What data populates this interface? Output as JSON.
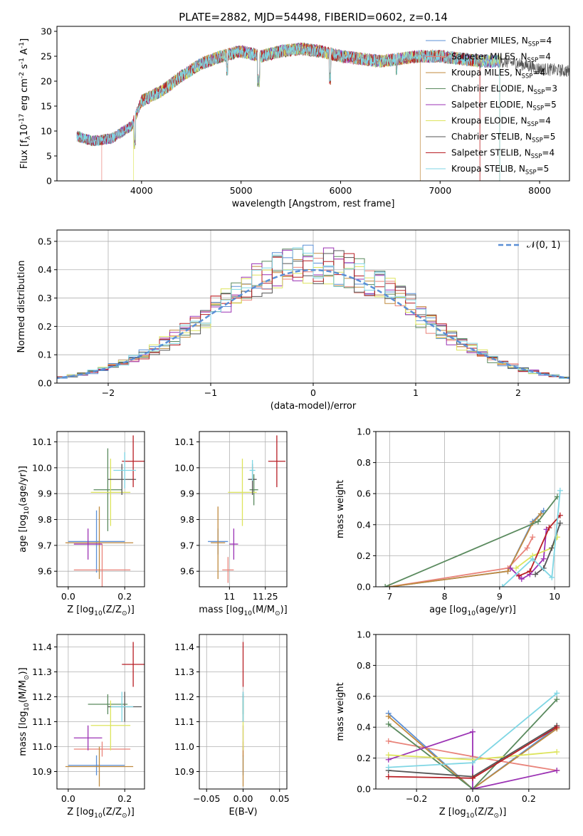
{
  "figure": {
    "title": "PLATE=2882, MJD=54498, FIBERID=0602, z=0.14"
  },
  "models": [
    {
      "label": "Chabrier MILES, N$_{SSP}$=4",
      "color": "#5b8fd6"
    },
    {
      "label": "Salpeter MILES, N$_{SSP}$=4",
      "color": "#e9837a"
    },
    {
      "label": "Kroupa MILES, N$_{SSP}$=4",
      "color": "#c08a3e"
    },
    {
      "label": "Chabrier ELODIE, N$_{SSP}$=3",
      "color": "#5a8a5e"
    },
    {
      "label": "Salpeter ELODIE, N$_{SSP}$=5",
      "color": "#9b32b4"
    },
    {
      "label": "Kroupa ELODIE, N$_{SSP}$=4",
      "color": "#dde45c"
    },
    {
      "label": "Chabrier STELIB, N$_{SSP}$=5",
      "color": "#555555"
    },
    {
      "label": "Salpeter STELIB, N$_{SSP}$=4",
      "color": "#b81e24"
    },
    {
      "label": "Kroupa STELIB, N$_{SSP}$=5",
      "color": "#7fd6e4"
    }
  ],
  "chart_data": [
    {
      "id": "spectrum",
      "type": "line",
      "xlabel": "wavelength [Angstrom, rest frame]",
      "ylabel": "Flux [f$_\\lambda$10$^{-17}$ erg cm$^{-2}$ s$^{-1}$ A$^{-1}$]",
      "xlim": [
        3150,
        8300
      ],
      "ylim": [
        0,
        31
      ],
      "xticks": [
        4000,
        5000,
        6000,
        7000,
        8000
      ],
      "yticks": [
        0,
        5,
        10,
        15,
        20,
        25,
        30
      ],
      "legend": "top-right",
      "continuum_x": [
        3350,
        3500,
        3700,
        3900,
        4000,
        4200,
        4400,
        4600,
        4800,
        5000,
        5200,
        5400,
        5600,
        5800,
        6000,
        6200,
        6400,
        6600,
        6800,
        7000,
        7200,
        7400,
        7600,
        7800,
        8000,
        8300
      ],
      "continuum_y": [
        9,
        8,
        8.5,
        11,
        16,
        18,
        21,
        23.5,
        25,
        26,
        25,
        26,
        26.5,
        26,
        25,
        24.5,
        24,
        24.5,
        25,
        25,
        24.5,
        24,
        24,
        23.5,
        22.5,
        22
      ],
      "observed_until": 7600,
      "model_starts": [
        3350,
        3600,
        3350,
        3350,
        3350,
        3920,
        3350,
        3350,
        3350
      ],
      "model_ends": [
        7600,
        7400,
        6800,
        7600,
        7600,
        7600,
        7600,
        7400,
        7600
      ]
    },
    {
      "id": "residuals",
      "type": "bar",
      "xlabel": "(data-model)/error",
      "ylabel": "Normed distribution",
      "xlim": [
        -2.5,
        2.5
      ],
      "ylim": [
        0,
        0.54
      ],
      "xticks": [
        -2,
        -1,
        0,
        1,
        2
      ],
      "yticks": [
        0.0,
        0.1,
        0.2,
        0.3,
        0.4,
        0.5
      ],
      "legend": "top-right",
      "reference_label": "$\\mathcal{N}(0, 1)$",
      "bin_width": 0.1
    },
    {
      "id": "age-vs-Z",
      "type": "scatter",
      "xlabel": "Z [log$_{10}$(Z/Z$_\\odot$)]",
      "ylabel": "age  [log$_{10}$(age/yr)]",
      "xlim": [
        -0.04,
        0.27
      ],
      "ylim": [
        9.54,
        10.14
      ],
      "xticks": [
        0.0,
        0.2
      ],
      "yticks": [
        9.6,
        9.7,
        9.8,
        9.9,
        10.0,
        10.1
      ],
      "points": [
        {
          "x": 0.1,
          "xerr": 0.1,
          "y": 9.715,
          "yerr": 0.12
        },
        {
          "x": 0.12,
          "xerr": 0.1,
          "y": 9.605,
          "yerr": 0.1
        },
        {
          "x": 0.11,
          "xerr": 0.12,
          "y": 9.71,
          "yerr": 0.14
        },
        {
          "x": 0.14,
          "xerr": 0.05,
          "y": 9.915,
          "yerr": 0.16
        },
        {
          "x": 0.07,
          "xerr": 0.05,
          "y": 9.705,
          "yerr": 0.06
        },
        {
          "x": 0.15,
          "xerr": 0.07,
          "y": 9.905,
          "yerr": 0.13
        },
        {
          "x": 0.19,
          "xerr": 0.05,
          "y": 9.955,
          "yerr": 0.06
        },
        {
          "x": 0.23,
          "xerr": 0.04,
          "y": 10.025,
          "yerr": 0.1
        },
        {
          "x": 0.2,
          "xerr": 0.04,
          "y": 9.99,
          "yerr": 0.07
        }
      ]
    },
    {
      "id": "age-vs-mass",
      "type": "scatter",
      "xlabel": "mass [log$_{10}$(M/M$_\\odot$)]",
      "ylabel": "",
      "xlim": [
        10.79,
        11.4
      ],
      "ylim": [
        9.54,
        10.14
      ],
      "xticks": [
        11.0,
        11.25
      ],
      "yticks": [
        9.6,
        9.7,
        9.8,
        9.9,
        10.0,
        10.1
      ],
      "points": [
        {
          "x": 10.92,
          "xerr": 0.07,
          "y": 9.715,
          "yerr": 0.05
        },
        {
          "x": 10.99,
          "xerr": 0.04,
          "y": 9.605,
          "yerr": 0.05
        },
        {
          "x": 10.92,
          "xerr": 0.05,
          "y": 9.71,
          "yerr": 0.14
        },
        {
          "x": 11.17,
          "xerr": 0.03,
          "y": 9.915,
          "yerr": 0.06
        },
        {
          "x": 11.03,
          "xerr": 0.03,
          "y": 9.705,
          "yerr": 0.06
        },
        {
          "x": 11.09,
          "xerr": 0.1,
          "y": 9.905,
          "yerr": 0.13
        },
        {
          "x": 11.16,
          "xerr": 0.03,
          "y": 9.955,
          "yerr": 0.06
        },
        {
          "x": 11.33,
          "xerr": 0.06,
          "y": 10.025,
          "yerr": 0.1
        },
        {
          "x": 11.16,
          "xerr": 0.02,
          "y": 9.99,
          "yerr": 0.04
        }
      ]
    },
    {
      "id": "weight-vs-age",
      "type": "line",
      "xlabel": "age  [log$_{10}$(age/yr)]",
      "ylabel": "mass weight",
      "xlim": [
        6.75,
        10.27
      ],
      "ylim": [
        0,
        1
      ],
      "xticks": [
        7,
        8,
        9,
        10
      ],
      "yticks": [
        0.0,
        0.2,
        0.4,
        0.6,
        0.8,
        1.0
      ],
      "series": [
        {
          "x": [
            7.0,
            9.15,
            9.6,
            9.8
          ],
          "y": [
            0.0,
            0.1,
            0.42,
            0.49
          ]
        },
        {
          "x": [
            7.0,
            9.15,
            9.5,
            9.6
          ],
          "y": [
            0.0,
            0.12,
            0.25,
            0.32
          ]
        },
        {
          "x": [
            7.0,
            9.15,
            9.6,
            9.75
          ],
          "y": [
            0.0,
            0.1,
            0.41,
            0.47
          ]
        },
        {
          "x": [
            6.92,
            9.7,
            10.05
          ],
          "y": [
            0.0,
            0.42,
            0.58
          ]
        },
        {
          "x": [
            9.2,
            9.4,
            9.55,
            9.8,
            9.85
          ],
          "y": [
            0.12,
            0.05,
            0.08,
            0.18,
            0.37
          ]
        },
        {
          "x": [
            9.3,
            9.6,
            9.95,
            10.05
          ],
          "y": [
            0.12,
            0.2,
            0.25,
            0.32
          ]
        },
        {
          "x": [
            9.65,
            9.8,
            9.95,
            10.1
          ],
          "y": [
            0.08,
            0.12,
            0.25,
            0.41
          ]
        },
        {
          "x": [
            9.35,
            9.55,
            9.9,
            10.1
          ],
          "y": [
            0.07,
            0.1,
            0.38,
            0.46
          ]
        },
        {
          "x": [
            9.05,
            9.6,
            9.95,
            10.1
          ],
          "y": [
            0.0,
            0.18,
            0.06,
            0.62
          ]
        }
      ]
    },
    {
      "id": "mass-vs-Z",
      "type": "scatter",
      "xlabel": "Z [log$_{10}$(Z/Z$_\\odot$)]",
      "ylabel": "mass [log$_{10}$(M/M$_\\odot$)]",
      "xlim": [
        -0.04,
        0.27
      ],
      "ylim": [
        10.83,
        11.45
      ],
      "xticks": [
        0.0,
        0.2
      ],
      "yticks": [
        10.9,
        11.0,
        11.1,
        11.2,
        11.3,
        11.4
      ],
      "points": [
        {
          "x": 0.1,
          "xerr": 0.1,
          "y": 10.925,
          "yerr": 0.04
        },
        {
          "x": 0.12,
          "xerr": 0.1,
          "y": 10.99,
          "yerr": 0.03
        },
        {
          "x": 0.11,
          "xerr": 0.12,
          "y": 10.92,
          "yerr": 0.08
        },
        {
          "x": 0.14,
          "xerr": 0.07,
          "y": 11.17,
          "yerr": 0.04
        },
        {
          "x": 0.07,
          "xerr": 0.05,
          "y": 11.035,
          "yerr": 0.05
        },
        {
          "x": 0.15,
          "xerr": 0.07,
          "y": 11.085,
          "yerr": 0.1
        },
        {
          "x": 0.2,
          "xerr": 0.06,
          "y": 11.16,
          "yerr": 0.06
        },
        {
          "x": 0.23,
          "xerr": 0.04,
          "y": 11.33,
          "yerr": 0.09
        },
        {
          "x": 0.19,
          "xerr": 0.04,
          "y": 11.16,
          "yerr": 0.06
        }
      ]
    },
    {
      "id": "mass-vs-EBV",
      "type": "scatter",
      "xlabel": "E(B-V)",
      "ylabel": "",
      "xlim": [
        -0.06,
        0.06
      ],
      "ylim": [
        10.83,
        11.45
      ],
      "xticks": [
        -0.05,
        0.0,
        0.05
      ],
      "xticklabels": [
        "−0.05",
        "0.00",
        "0.05"
      ],
      "yticks": [
        10.9,
        11.0,
        11.1,
        11.2,
        11.3,
        11.4
      ],
      "points": [
        {
          "x": 0.0,
          "y": 10.925,
          "yerr": 0.04
        },
        {
          "x": 0.0,
          "y": 10.99,
          "yerr": 0.03
        },
        {
          "x": 0.0,
          "y": 10.92,
          "yerr": 0.08
        },
        {
          "x": 0.0,
          "y": 11.17,
          "yerr": 0.04
        },
        {
          "x": 0.0,
          "y": 11.035,
          "yerr": 0.05
        },
        {
          "x": 0.0,
          "y": 11.085,
          "yerr": 0.1
        },
        {
          "x": 0.0,
          "y": 11.16,
          "yerr": 0.06
        },
        {
          "x": 0.0,
          "y": 11.33,
          "yerr": 0.09
        },
        {
          "x": 0.0,
          "y": 11.16,
          "yerr": 0.06
        }
      ]
    },
    {
      "id": "weight-vs-Z",
      "type": "line",
      "xlabel": "Z [log$_{10}$(Z/Z$_\\odot$)]",
      "ylabel": "mass weight",
      "xlim": [
        -0.345,
        0.345
      ],
      "ylim": [
        0,
        1
      ],
      "xticks": [
        -0.2,
        0.0,
        0.2
      ],
      "xticklabels": [
        "−0.2",
        "0.0",
        "0.2"
      ],
      "yticks": [
        0.0,
        0.2,
        0.4,
        0.6,
        0.8,
        1.0
      ],
      "series": [
        {
          "x": [
            -0.3,
            0.0,
            0.3
          ],
          "y": [
            0.49,
            0.0,
            0.4
          ]
        },
        {
          "x": [
            -0.3,
            0.0,
            0.3
          ],
          "y": [
            0.31,
            0.21,
            0.12
          ]
        },
        {
          "x": [
            -0.3,
            0.0,
            0.3
          ],
          "y": [
            0.47,
            0.0,
            0.39
          ]
        },
        {
          "x": [
            -0.3,
            0.0,
            0.3
          ],
          "y": [
            0.42,
            0.0,
            0.58
          ]
        },
        {
          "x": [
            -0.3,
            0.0,
            0.0,
            0.3
          ],
          "y": [
            0.19,
            0.37,
            0.0,
            0.12
          ]
        },
        {
          "x": [
            -0.3,
            0.0,
            0.3
          ],
          "y": [
            0.22,
            0.19,
            0.24
          ]
        },
        {
          "x": [
            -0.3,
            0.0,
            0.3
          ],
          "y": [
            0.12,
            0.08,
            0.41
          ]
        },
        {
          "x": [
            -0.3,
            0.0,
            0.3
          ],
          "y": [
            0.08,
            0.07,
            0.4
          ]
        },
        {
          "x": [
            -0.3,
            0.0,
            0.3
          ],
          "y": [
            0.14,
            0.17,
            0.62
          ]
        }
      ]
    }
  ]
}
